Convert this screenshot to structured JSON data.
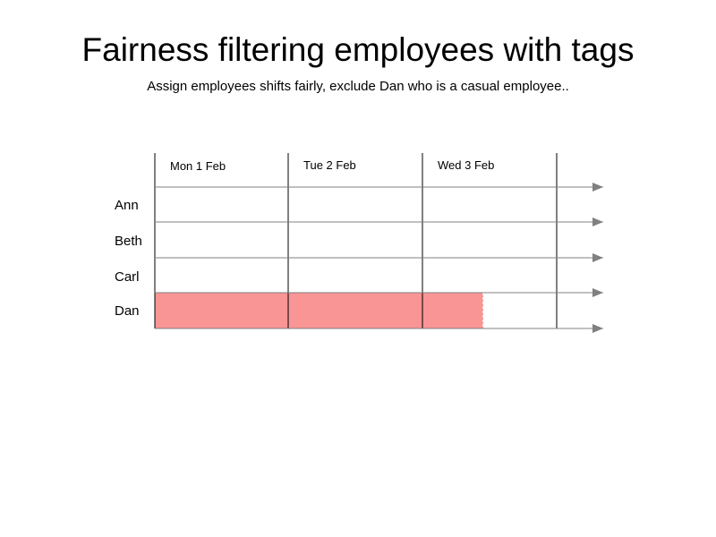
{
  "title": "Fairness filtering employees with tags",
  "subtitle": "Assign employees shifts fairly, exclude Dan who is a casual employee..",
  "days": [
    "Mon 1 Feb",
    "Tue 2 Feb",
    "Wed 3 Feb"
  ],
  "employees": [
    "Ann",
    "Beth",
    "Carl",
    "Dan"
  ],
  "excluded_employee": "Dan",
  "colors": {
    "exclusion_fill": "#f99595",
    "timeline": "#808080",
    "day_divider": "#000000"
  }
}
